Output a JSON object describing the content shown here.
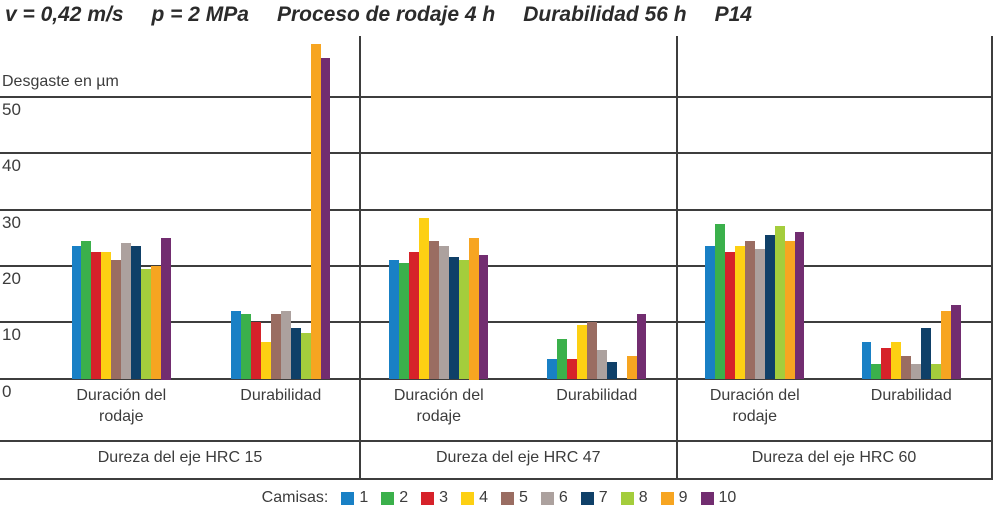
{
  "chart_data": {
    "type": "bar",
    "title": "v = 0,42 m/s  p = 2 MPa  Proceso de rodaje 4 h  Durabilidad 56 h  P14",
    "title_segments": [
      "v = 0,42 m/s",
      "p = 2 MPa",
      "Proceso de rodaje 4 h",
      "Durabilidad 56 h",
      "P14"
    ],
    "ylabel": "Desgaste en µm",
    "yticks": [
      0,
      10,
      20,
      30,
      40,
      50
    ],
    "ylim": [
      0,
      60
    ],
    "grid": true,
    "legend_position": "bottom",
    "legend_title": "Camisas:",
    "series_labels": [
      "1",
      "2",
      "3",
      "4",
      "5",
      "6",
      "7",
      "8",
      "9",
      "10"
    ],
    "series_colors": [
      "#1980c5",
      "#3bb04b",
      "#d6222a",
      "#fdd013",
      "#9a6d62",
      "#aca19e",
      "#0f4068",
      "#a4cd3c",
      "#f7a521",
      "#722d70"
    ],
    "panels": [
      {
        "label": "Dureza del eje HRC 15",
        "groups": [
          {
            "label": "Duración del rodaje",
            "values": [
              23.5,
              24.5,
              22.5,
              22.5,
              21,
              24,
              23.5,
              19.5,
              20,
              25
            ]
          },
          {
            "label": "Durabilidad",
            "values": [
              12,
              11.5,
              10,
              6.5,
              11.5,
              12,
              9,
              8,
              59.5,
              57
            ]
          }
        ]
      },
      {
        "label": "Dureza del eje HRC 47",
        "groups": [
          {
            "label": "Duración del rodaje",
            "values": [
              21,
              20.5,
              22.5,
              28.5,
              24.5,
              23.5,
              21.5,
              21,
              25,
              22
            ]
          },
          {
            "label": "Durabilidad",
            "values": [
              3.5,
              7,
              3.5,
              9.5,
              10,
              5,
              3,
              0,
              4,
              11.5
            ]
          }
        ]
      },
      {
        "label": "Dureza del eje HRC 60",
        "groups": [
          {
            "label": "Duración del rodaje",
            "values": [
              23.5,
              27.5,
              22.5,
              23.5,
              24.5,
              23,
              25.5,
              27,
              24.5,
              26
            ]
          },
          {
            "label": "Durabilidad",
            "values": [
              6.5,
              2.5,
              5.5,
              6.5,
              4,
              2.5,
              9,
              2.5,
              12,
              13
            ]
          }
        ]
      }
    ]
  }
}
